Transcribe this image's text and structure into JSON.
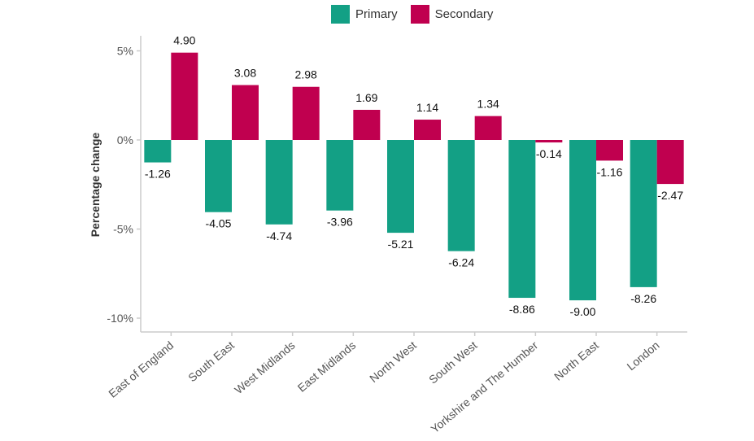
{
  "chart_data": {
    "type": "bar",
    "title": "",
    "xlabel": "",
    "ylabel": "Percentage change",
    "categories": [
      "East of England",
      "South East",
      "West Midlands",
      "East Midlands",
      "North West",
      "South West",
      "Yorkshire and The Humber",
      "North East",
      "London"
    ],
    "series": [
      {
        "name": "Primary",
        "color": "#13a085",
        "values": [
          -1.26,
          -4.05,
          -4.74,
          -3.96,
          -5.21,
          -6.24,
          -8.86,
          -9.0,
          -8.26
        ],
        "labels": [
          "-1.26",
          "-4.05",
          "-4.74",
          "-3.96",
          "-5.21",
          "-6.24",
          "-8.86",
          "-9.00",
          "-8.26"
        ]
      },
      {
        "name": "Secondary",
        "color": "#c0004f",
        "values": [
          4.9,
          3.08,
          2.98,
          1.69,
          1.14,
          1.34,
          -0.14,
          -1.16,
          -2.47
        ],
        "labels": [
          "4.90",
          "3.08",
          "2.98",
          "1.69",
          "1.14",
          "1.34",
          "-0.14",
          "-1.16",
          "-2.47"
        ]
      }
    ],
    "ylim": [
      -10.8,
      5.6
    ],
    "yticks": [
      5,
      0,
      -5,
      -10
    ],
    "ytick_labels": [
      "5%",
      "0%",
      "-5%",
      "-10%"
    ],
    "legend_position": "top",
    "grid": false
  }
}
